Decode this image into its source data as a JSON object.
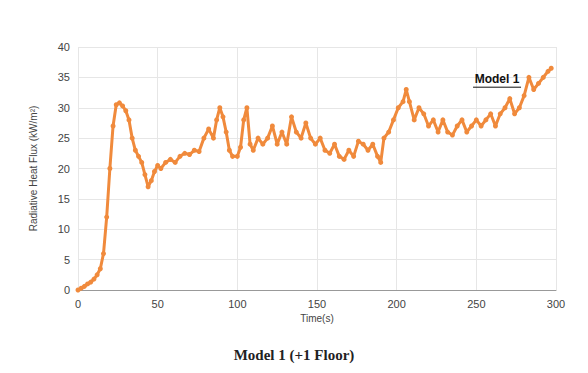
{
  "chart_data": {
    "type": "line",
    "title": "Model 1 (+1 Floor)",
    "x_label": "Time(s)",
    "y_label": "Radiative Heat Flux (kW/m²)",
    "annotations": [
      {
        "text": "Model 1",
        "x": 263,
        "y": 34.7
      }
    ],
    "xlim": [
      0,
      300
    ],
    "xticks": [
      0,
      50,
      100,
      150,
      200,
      250,
      300
    ],
    "ylim": [
      0,
      40
    ],
    "yticks": [
      0,
      5,
      10,
      15,
      20,
      25,
      30,
      35,
      40
    ],
    "grid": true,
    "series": [
      {
        "name": "Model 1",
        "color": "#f08a3c",
        "marker": "circle",
        "line_style": "solid",
        "x": [
          0,
          2,
          4,
          6,
          8,
          10,
          12,
          14,
          16,
          18,
          20,
          22,
          24,
          26,
          28,
          30,
          32,
          34,
          36,
          38,
          40,
          42,
          44,
          46,
          48,
          50,
          52,
          55,
          58,
          61,
          64,
          67,
          70,
          73,
          76,
          79,
          82,
          85,
          87,
          89,
          91,
          93,
          95,
          97,
          100,
          102,
          104,
          106,
          108,
          110,
          113,
          116,
          119,
          122,
          125,
          128,
          131,
          134,
          137,
          140,
          143,
          146,
          149,
          152,
          155,
          158,
          161,
          164,
          167,
          170,
          173,
          176,
          179,
          182,
          185,
          188,
          190,
          192,
          195,
          198,
          201,
          204,
          206,
          208,
          211,
          214,
          217,
          220,
          223,
          226,
          229,
          232,
          235,
          238,
          241,
          244,
          247,
          250,
          253,
          256,
          259,
          262,
          265,
          268,
          271,
          274,
          277,
          280,
          283,
          286,
          289,
          292,
          295,
          297
        ],
        "values": [
          0,
          0.3,
          0.6,
          1,
          1.3,
          1.8,
          2.5,
          3.5,
          6,
          12,
          20,
          27,
          30.5,
          30.8,
          30.3,
          29.5,
          28,
          25,
          23,
          22,
          21,
          19,
          17,
          18,
          19.5,
          20.5,
          20,
          21,
          21.5,
          21,
          22,
          22.5,
          22.3,
          23,
          22.8,
          25,
          26.5,
          25,
          28,
          30,
          28.5,
          26,
          23,
          22,
          22,
          23.5,
          28,
          30,
          24,
          23,
          25,
          24,
          25,
          27,
          24,
          26,
          24,
          28.5,
          26,
          25,
          27.5,
          25,
          24,
          25,
          23,
          22.5,
          24,
          22,
          21.5,
          23,
          22,
          24.5,
          24,
          23,
          24,
          22,
          21,
          25,
          26,
          28,
          30,
          31,
          33,
          31,
          28,
          30,
          29,
          27,
          28,
          26,
          28,
          26,
          25.5,
          27,
          28,
          26,
          27,
          28,
          27,
          28,
          29,
          27,
          29,
          30,
          31.5,
          29,
          30,
          32,
          35,
          33,
          34,
          35,
          36,
          36.5
        ]
      }
    ]
  }
}
